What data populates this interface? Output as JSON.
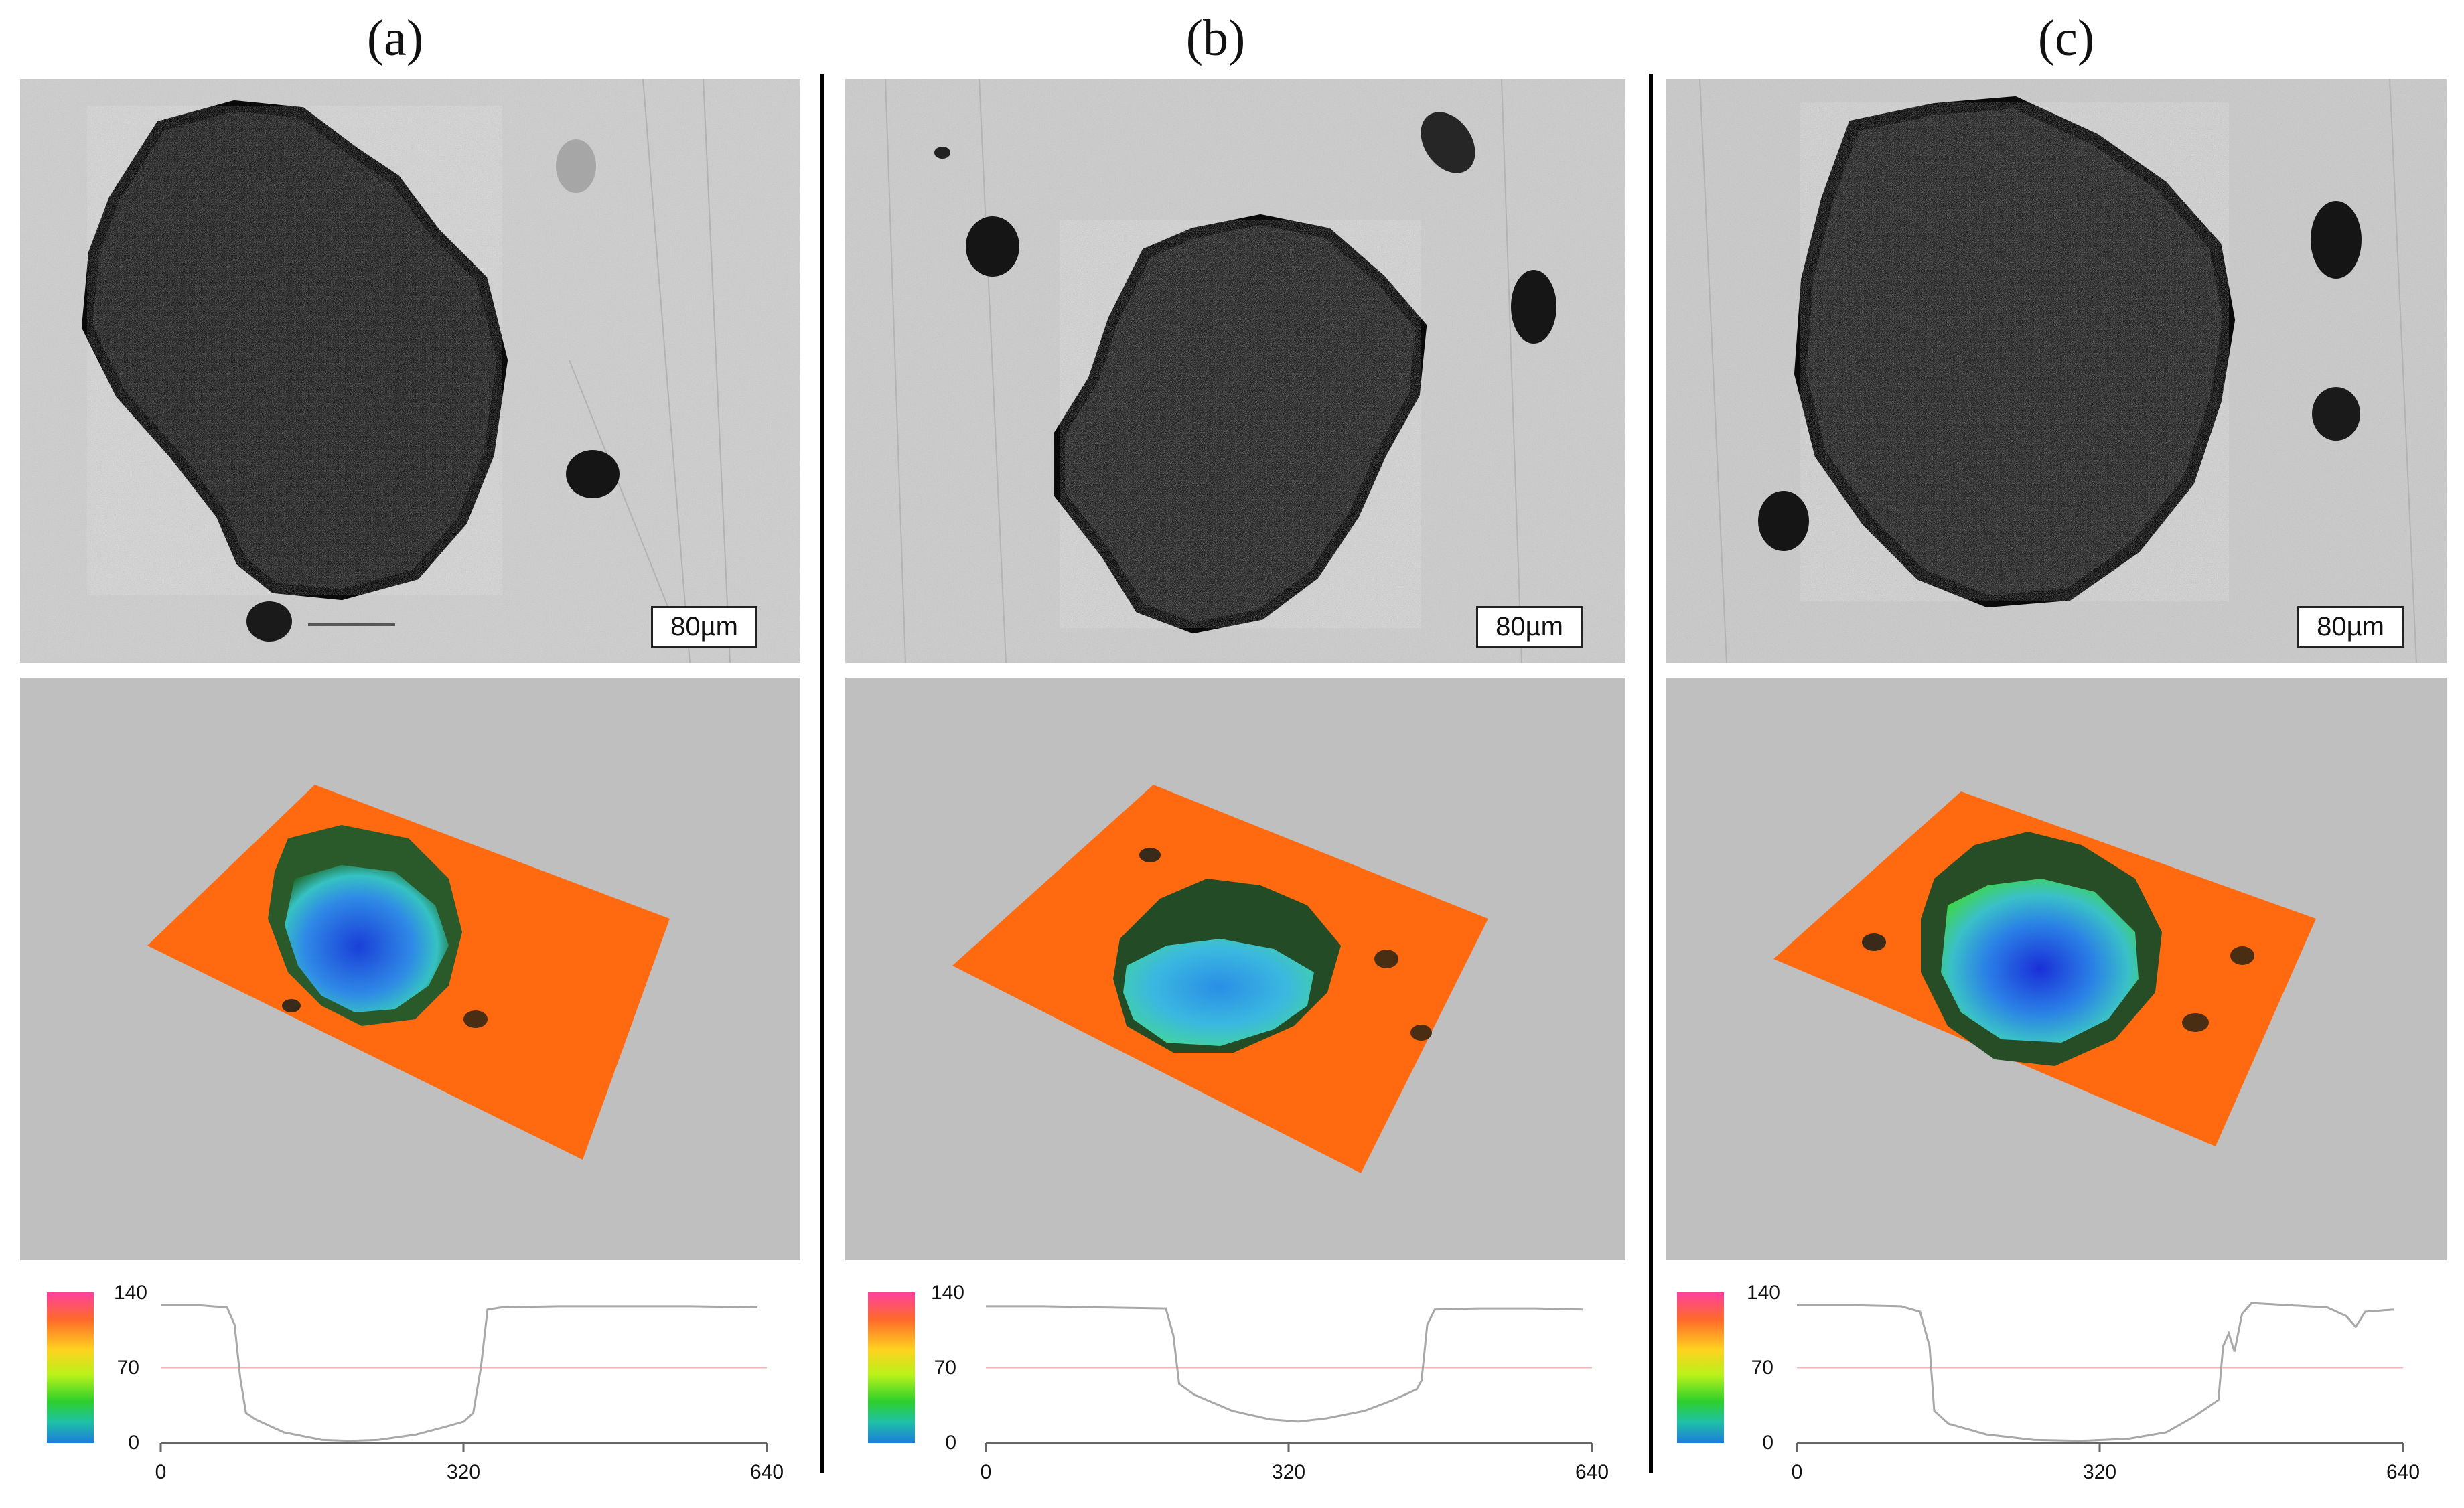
{
  "panels": [
    {
      "id": "a",
      "label": "(a)",
      "scale_bar": "80µm",
      "colorbar": {
        "ticks": [
          "140",
          "70",
          "0"
        ]
      },
      "profile": {
        "x_ticks": [
          "0",
          "320",
          "640"
        ],
        "xlim": [
          0,
          640
        ],
        "ylim": [
          0,
          140
        ],
        "reference_level": 70,
        "x": [
          0,
          40,
          70,
          78,
          84,
          90,
          100,
          130,
          170,
          200,
          230,
          270,
          300,
          320,
          330,
          338,
          345,
          360,
          420,
          500,
          560,
          630
        ],
        "y": [
          128,
          128,
          126,
          110,
          60,
          28,
          22,
          10,
          3,
          2,
          3,
          8,
          15,
          20,
          28,
          70,
          124,
          126,
          127,
          127,
          127,
          126
        ]
      }
    },
    {
      "id": "b",
      "label": "(b)",
      "scale_bar": "80µm",
      "colorbar": {
        "ticks": [
          "140",
          "70",
          "0"
        ]
      },
      "profile": {
        "x_ticks": [
          "0",
          "320",
          "640"
        ],
        "xlim": [
          0,
          640
        ],
        "ylim": [
          0,
          140
        ],
        "reference_level": 70,
        "x": [
          0,
          60,
          120,
          190,
          198,
          204,
          220,
          260,
          300,
          330,
          360,
          400,
          430,
          455,
          460,
          466,
          474,
          520,
          580,
          630
        ],
        "y": [
          127,
          127,
          126,
          125,
          100,
          55,
          45,
          30,
          22,
          20,
          23,
          30,
          40,
          50,
          58,
          110,
          124,
          125,
          125,
          124
        ]
      }
    },
    {
      "id": "c",
      "label": "(c)",
      "scale_bar": "80µm",
      "colorbar": {
        "ticks": [
          "140",
          "70",
          "0"
        ]
      },
      "profile": {
        "x_ticks": [
          "0",
          "320",
          "640"
        ],
        "xlim": [
          0,
          640
        ],
        "ylim": [
          0,
          140
        ],
        "reference_level": 70,
        "x": [
          0,
          60,
          110,
          130,
          140,
          145,
          160,
          200,
          250,
          300,
          350,
          390,
          420,
          445,
          450,
          456,
          462,
          470,
          480,
          520,
          560,
          580,
          590,
          600,
          630
        ],
        "y": [
          128,
          128,
          127,
          122,
          90,
          30,
          18,
          8,
          3,
          2,
          4,
          10,
          25,
          40,
          90,
          102,
          85,
          120,
          130,
          128,
          126,
          118,
          108,
          122,
          124
        ]
      }
    }
  ]
}
